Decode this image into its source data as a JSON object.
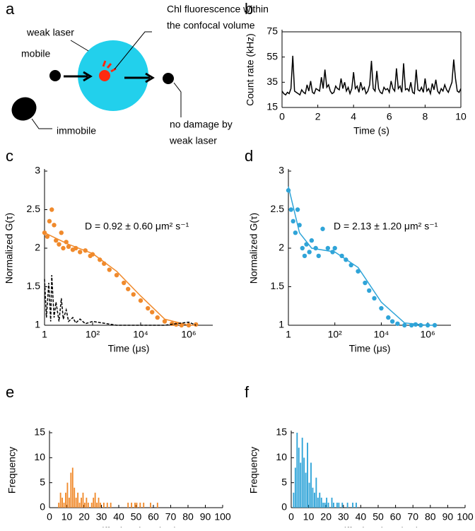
{
  "panel_labels": [
    "a",
    "b",
    "c",
    "d",
    "e",
    "f"
  ],
  "diagram": {
    "texts": [
      "Chl fluorescence within",
      "the confocal volume",
      "weak laser",
      "mobile",
      "immobile",
      "no damage by",
      "weak laser"
    ]
  },
  "chart_data": [
    {
      "type": "line",
      "color": "#000000",
      "ylabel": "Count rate (kHz)",
      "xlabel": "Time (s)",
      "xlim": [
        0,
        10
      ],
      "xticks": [
        0,
        2,
        4,
        6,
        8,
        10
      ],
      "ylim": [
        15,
        75
      ],
      "yticks": [
        15,
        35,
        55,
        75
      ],
      "minor_xticks": true,
      "x": [
        0,
        0.1,
        0.2,
        0.3,
        0.4,
        0.5,
        0.6,
        0.7,
        0.8,
        0.9,
        1,
        1.1,
        1.2,
        1.3,
        1.4,
        1.5,
        1.6,
        1.7,
        1.8,
        1.9,
        2,
        2.1,
        2.2,
        2.3,
        2.4,
        2.5,
        2.6,
        2.7,
        2.8,
        2.9,
        3,
        3.1,
        3.2,
        3.3,
        3.4,
        3.5,
        3.6,
        3.7,
        3.8,
        3.9,
        4,
        4.1,
        4.2,
        4.3,
        4.4,
        4.5,
        4.6,
        4.7,
        4.8,
        4.9,
        5,
        5.1,
        5.2,
        5.3,
        5.4,
        5.5,
        5.6,
        5.7,
        5.8,
        5.9,
        6,
        6.1,
        6.2,
        6.3,
        6.4,
        6.5,
        6.6,
        6.7,
        6.8,
        6.9,
        7,
        7.1,
        7.2,
        7.3,
        7.4,
        7.5,
        7.6,
        7.7,
        7.8,
        7.9,
        8,
        8.1,
        8.2,
        8.3,
        8.4,
        8.5,
        8.6,
        8.7,
        8.8,
        8.9,
        9,
        9.1,
        9.2,
        9.3,
        9.4,
        9.5,
        9.6,
        9.7,
        9.8,
        9.9,
        10
      ],
      "values": [
        28,
        26,
        25,
        27,
        26,
        30,
        56,
        28,
        27,
        26,
        25,
        29,
        27,
        26,
        33,
        28,
        36,
        27,
        26,
        30,
        29,
        28,
        39,
        30,
        45,
        31,
        33,
        28,
        26,
        27,
        32,
        30,
        29,
        38,
        30,
        35,
        28,
        31,
        26,
        30,
        43,
        30,
        32,
        27,
        35,
        29,
        31,
        26,
        28,
        33,
        52,
        30,
        28,
        44,
        30,
        27,
        26,
        31,
        29,
        30,
        27,
        36,
        30,
        28,
        46,
        30,
        32,
        27,
        50,
        29,
        30,
        28,
        35,
        27,
        26,
        45,
        29,
        28,
        31,
        27,
        38,
        28,
        30,
        26,
        34,
        29,
        37,
        28,
        26,
        30,
        28,
        33,
        29,
        27,
        31,
        35,
        53,
        38,
        28,
        27,
        30
      ]
    },
    {
      "type": "scatter",
      "log_x": true,
      "ylabel": "Normalized G(τ)",
      "xlabel": "Time (μs)",
      "annotation": "D = 0.92 ± 0.60 μm² s⁻¹",
      "xlim": [
        1,
        10000000
      ],
      "xticks": [
        1,
        {
          "value": 100,
          "label": "10²"
        },
        {
          "value": 10000,
          "label": "10⁴"
        },
        {
          "value": 1000000,
          "label": "10⁶"
        }
      ],
      "ylim": [
        1,
        3
      ],
      "yticks": [
        1,
        1.5,
        2,
        2.5,
        3
      ],
      "series": [
        {
          "mark": "points",
          "color": "#f08a2c",
          "x": [
            1,
            1.3,
            1.6,
            2,
            2.5,
            3,
            4,
            5,
            6,
            8,
            10,
            15,
            20,
            30,
            50,
            80,
            100,
            200,
            300,
            500,
            1000,
            2000,
            3000,
            5000,
            10000,
            20000,
            30000,
            50000,
            100000,
            200000,
            300000,
            500000,
            1000000,
            2000000
          ],
          "values": [
            2.2,
            2.15,
            2.35,
            2.5,
            2.3,
            2.1,
            2.05,
            2.2,
            2.0,
            2.08,
            2.02,
            1.98,
            2.0,
            1.95,
            1.97,
            1.9,
            1.92,
            1.85,
            1.8,
            1.72,
            1.65,
            1.55,
            1.47,
            1.4,
            1.32,
            1.22,
            1.17,
            1.1,
            1.05,
            1.02,
            1.01,
            1.0,
            1.0,
            1.01
          ]
        },
        {
          "mark": "line",
          "color": "#f08a2c",
          "x": [
            1,
            10,
            100,
            1000,
            10000,
            100000,
            1000000,
            2000000
          ],
          "values": [
            2.2,
            2.05,
            1.93,
            1.7,
            1.38,
            1.08,
            1.0,
            1.0
          ]
        },
        {
          "mark": "dashed",
          "color": "#000000",
          "x": [
            1,
            1.2,
            1.5,
            1.8,
            2,
            2.5,
            3,
            4,
            5,
            6,
            8,
            10,
            15,
            20,
            30,
            50,
            100,
            1000,
            10000,
            100000,
            1000000,
            2000000
          ],
          "values": [
            1.6,
            1.1,
            1.55,
            1.05,
            1.65,
            1.1,
            1.3,
            1.05,
            1.35,
            1.08,
            1.2,
            1.05,
            1.1,
            1.03,
            1.08,
            1.02,
            1.05,
            1.0,
            1.0,
            1.0,
            1.04,
            1.0
          ]
        }
      ]
    },
    {
      "type": "scatter",
      "log_x": true,
      "ylabel": "Normalized G(τ)",
      "xlabel": "Time (μs)",
      "annotation": "D = 2.13 ± 1.20 μm² s⁻¹",
      "xlim": [
        1,
        10000000
      ],
      "xticks": [
        1,
        {
          "value": 100,
          "label": "10²"
        },
        {
          "value": 10000,
          "label": "10⁴"
        },
        {
          "value": 1000000,
          "label": "10⁶"
        }
      ],
      "ylim": [
        1,
        3
      ],
      "yticks": [
        1,
        1.5,
        2,
        2.5,
        3
      ],
      "series": [
        {
          "mark": "points",
          "color": "#2fa4d8",
          "x": [
            1,
            1.3,
            1.6,
            2,
            2.5,
            3,
            4,
            5,
            6,
            8,
            10,
            15,
            20,
            30,
            50,
            80,
            100,
            200,
            300,
            500,
            1000,
            2000,
            3000,
            5000,
            10000,
            20000,
            30000,
            50000,
            100000,
            200000,
            300000,
            500000,
            1000000,
            2000000
          ],
          "values": [
            2.75,
            2.5,
            2.35,
            2.2,
            2.5,
            2.3,
            2.0,
            1.9,
            2.05,
            1.95,
            2.1,
            2.0,
            1.9,
            2.25,
            2.0,
            1.95,
            2.0,
            1.9,
            1.85,
            1.78,
            1.7,
            1.55,
            1.45,
            1.35,
            1.22,
            1.1,
            1.05,
            1.02,
            1.0,
            1.0,
            1.01,
            1.0,
            1.0,
            1.0
          ]
        },
        {
          "mark": "line",
          "color": "#2fa4d8",
          "x": [
            1,
            3,
            10,
            100,
            1000,
            10000,
            100000,
            1000000,
            2000000
          ],
          "values": [
            2.8,
            2.2,
            2.0,
            1.95,
            1.75,
            1.3,
            1.03,
            1.0,
            1.0
          ]
        }
      ]
    },
    {
      "type": "histogram",
      "color": "#f08a2c",
      "ylabel": "Frequency",
      "xlabel": "Diffusion time (ms)",
      "xlim": [
        0,
        100
      ],
      "xticks": [
        0,
        10,
        20,
        30,
        40,
        50,
        60,
        70,
        80,
        90,
        100
      ],
      "ylim": [
        0,
        15
      ],
      "yticks": [
        0,
        5,
        10,
        15
      ],
      "bins": [
        0,
        1,
        2,
        3,
        4,
        5,
        6,
        7,
        8,
        9,
        10,
        11,
        12,
        13,
        14,
        15,
        16,
        17,
        18,
        19,
        20,
        21,
        22,
        23,
        24,
        25,
        26,
        27,
        28,
        29,
        30,
        31,
        32,
        33,
        34,
        35,
        36,
        37,
        38,
        39,
        40,
        41,
        42,
        43,
        44,
        45,
        46,
        47,
        48,
        49,
        50,
        51,
        52,
        53,
        54,
        55,
        56,
        57,
        58,
        59,
        60,
        61,
        62,
        63,
        64,
        65
      ],
      "values": [
        0,
        0,
        0,
        0,
        0,
        1,
        3,
        2,
        1,
        3,
        5,
        2,
        7,
        8,
        4,
        2,
        3,
        1,
        2,
        3,
        1,
        2,
        1,
        0,
        1,
        2,
        3,
        1,
        2,
        1,
        0,
        1,
        0,
        1,
        0,
        1,
        0,
        0,
        0,
        0,
        0,
        0,
        0,
        0,
        0,
        1,
        0,
        1,
        0,
        1,
        1,
        0,
        1,
        0,
        1,
        0,
        0,
        0,
        1,
        0,
        0,
        0,
        1,
        0,
        0
      ]
    },
    {
      "type": "histogram",
      "color": "#2fa4d8",
      "ylabel": "Frequency",
      "xlabel": "Diffusion time (ms)",
      "xlim": [
        0,
        100
      ],
      "xticks": [
        0,
        10,
        20,
        30,
        40,
        50,
        60,
        70,
        80,
        90,
        100
      ],
      "ylim": [
        0,
        15
      ],
      "yticks": [
        0,
        5,
        10,
        15
      ],
      "bins": [
        0,
        1,
        2,
        3,
        4,
        5,
        6,
        7,
        8,
        9,
        10,
        11,
        12,
        13,
        14,
        15,
        16,
        17,
        18,
        19,
        20,
        21,
        22,
        23,
        24,
        25,
        26,
        27,
        28,
        29,
        30,
        31,
        32,
        33,
        34,
        35,
        36,
        37,
        38,
        39,
        40
      ],
      "values": [
        0,
        3,
        8,
        15,
        12,
        9,
        14,
        10,
        7,
        13,
        5,
        9,
        4,
        3,
        6,
        2,
        3,
        2,
        1,
        1,
        2,
        1,
        0,
        2,
        1,
        0,
        1,
        1,
        0,
        1,
        0,
        0,
        1,
        0,
        0,
        1,
        0,
        1,
        0,
        0
      ]
    }
  ]
}
